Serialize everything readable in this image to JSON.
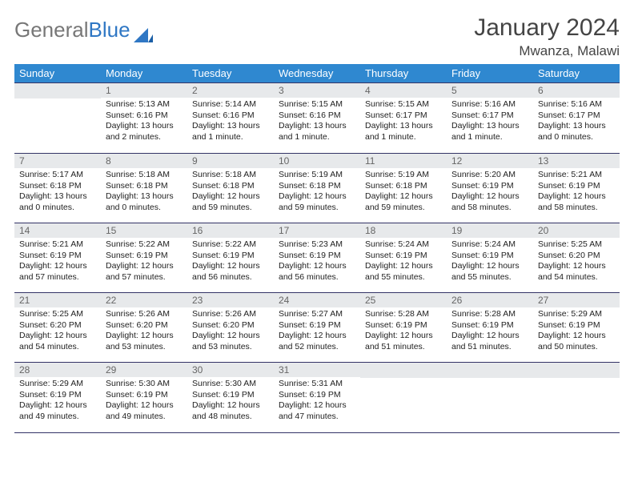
{
  "logo": {
    "word1": "General",
    "word2": "Blue"
  },
  "header": {
    "title": "January 2024",
    "location": "Mwanza, Malawi"
  },
  "colors": {
    "header_bg": "#2f88d0",
    "daynum_bg": "#e7e9eb",
    "rule": "#336699",
    "logo_gray": "#777777",
    "logo_blue": "#2f77c4"
  },
  "weekday_labels": [
    "Sunday",
    "Monday",
    "Tuesday",
    "Wednesday",
    "Thursday",
    "Friday",
    "Saturday"
  ],
  "first_weekday_index": 1,
  "num_days": 31,
  "days": {
    "1": {
      "sunrise": "Sunrise: 5:13 AM",
      "sunset": "Sunset: 6:16 PM",
      "daylight": "Daylight: 13 hours and 2 minutes."
    },
    "2": {
      "sunrise": "Sunrise: 5:14 AM",
      "sunset": "Sunset: 6:16 PM",
      "daylight": "Daylight: 13 hours and 1 minute."
    },
    "3": {
      "sunrise": "Sunrise: 5:15 AM",
      "sunset": "Sunset: 6:16 PM",
      "daylight": "Daylight: 13 hours and 1 minute."
    },
    "4": {
      "sunrise": "Sunrise: 5:15 AM",
      "sunset": "Sunset: 6:17 PM",
      "daylight": "Daylight: 13 hours and 1 minute."
    },
    "5": {
      "sunrise": "Sunrise: 5:16 AM",
      "sunset": "Sunset: 6:17 PM",
      "daylight": "Daylight: 13 hours and 1 minute."
    },
    "6": {
      "sunrise": "Sunrise: 5:16 AM",
      "sunset": "Sunset: 6:17 PM",
      "daylight": "Daylight: 13 hours and 0 minutes."
    },
    "7": {
      "sunrise": "Sunrise: 5:17 AM",
      "sunset": "Sunset: 6:18 PM",
      "daylight": "Daylight: 13 hours and 0 minutes."
    },
    "8": {
      "sunrise": "Sunrise: 5:18 AM",
      "sunset": "Sunset: 6:18 PM",
      "daylight": "Daylight: 13 hours and 0 minutes."
    },
    "9": {
      "sunrise": "Sunrise: 5:18 AM",
      "sunset": "Sunset: 6:18 PM",
      "daylight": "Daylight: 12 hours and 59 minutes."
    },
    "10": {
      "sunrise": "Sunrise: 5:19 AM",
      "sunset": "Sunset: 6:18 PM",
      "daylight": "Daylight: 12 hours and 59 minutes."
    },
    "11": {
      "sunrise": "Sunrise: 5:19 AM",
      "sunset": "Sunset: 6:18 PM",
      "daylight": "Daylight: 12 hours and 59 minutes."
    },
    "12": {
      "sunrise": "Sunrise: 5:20 AM",
      "sunset": "Sunset: 6:19 PM",
      "daylight": "Daylight: 12 hours and 58 minutes."
    },
    "13": {
      "sunrise": "Sunrise: 5:21 AM",
      "sunset": "Sunset: 6:19 PM",
      "daylight": "Daylight: 12 hours and 58 minutes."
    },
    "14": {
      "sunrise": "Sunrise: 5:21 AM",
      "sunset": "Sunset: 6:19 PM",
      "daylight": "Daylight: 12 hours and 57 minutes."
    },
    "15": {
      "sunrise": "Sunrise: 5:22 AM",
      "sunset": "Sunset: 6:19 PM",
      "daylight": "Daylight: 12 hours and 57 minutes."
    },
    "16": {
      "sunrise": "Sunrise: 5:22 AM",
      "sunset": "Sunset: 6:19 PM",
      "daylight": "Daylight: 12 hours and 56 minutes."
    },
    "17": {
      "sunrise": "Sunrise: 5:23 AM",
      "sunset": "Sunset: 6:19 PM",
      "daylight": "Daylight: 12 hours and 56 minutes."
    },
    "18": {
      "sunrise": "Sunrise: 5:24 AM",
      "sunset": "Sunset: 6:19 PM",
      "daylight": "Daylight: 12 hours and 55 minutes."
    },
    "19": {
      "sunrise": "Sunrise: 5:24 AM",
      "sunset": "Sunset: 6:19 PM",
      "daylight": "Daylight: 12 hours and 55 minutes."
    },
    "20": {
      "sunrise": "Sunrise: 5:25 AM",
      "sunset": "Sunset: 6:20 PM",
      "daylight": "Daylight: 12 hours and 54 minutes."
    },
    "21": {
      "sunrise": "Sunrise: 5:25 AM",
      "sunset": "Sunset: 6:20 PM",
      "daylight": "Daylight: 12 hours and 54 minutes."
    },
    "22": {
      "sunrise": "Sunrise: 5:26 AM",
      "sunset": "Sunset: 6:20 PM",
      "daylight": "Daylight: 12 hours and 53 minutes."
    },
    "23": {
      "sunrise": "Sunrise: 5:26 AM",
      "sunset": "Sunset: 6:20 PM",
      "daylight": "Daylight: 12 hours and 53 minutes."
    },
    "24": {
      "sunrise": "Sunrise: 5:27 AM",
      "sunset": "Sunset: 6:19 PM",
      "daylight": "Daylight: 12 hours and 52 minutes."
    },
    "25": {
      "sunrise": "Sunrise: 5:28 AM",
      "sunset": "Sunset: 6:19 PM",
      "daylight": "Daylight: 12 hours and 51 minutes."
    },
    "26": {
      "sunrise": "Sunrise: 5:28 AM",
      "sunset": "Sunset: 6:19 PM",
      "daylight": "Daylight: 12 hours and 51 minutes."
    },
    "27": {
      "sunrise": "Sunrise: 5:29 AM",
      "sunset": "Sunset: 6:19 PM",
      "daylight": "Daylight: 12 hours and 50 minutes."
    },
    "28": {
      "sunrise": "Sunrise: 5:29 AM",
      "sunset": "Sunset: 6:19 PM",
      "daylight": "Daylight: 12 hours and 49 minutes."
    },
    "29": {
      "sunrise": "Sunrise: 5:30 AM",
      "sunset": "Sunset: 6:19 PM",
      "daylight": "Daylight: 12 hours and 49 minutes."
    },
    "30": {
      "sunrise": "Sunrise: 5:30 AM",
      "sunset": "Sunset: 6:19 PM",
      "daylight": "Daylight: 12 hours and 48 minutes."
    },
    "31": {
      "sunrise": "Sunrise: 5:31 AM",
      "sunset": "Sunset: 6:19 PM",
      "daylight": "Daylight: 12 hours and 47 minutes."
    }
  }
}
